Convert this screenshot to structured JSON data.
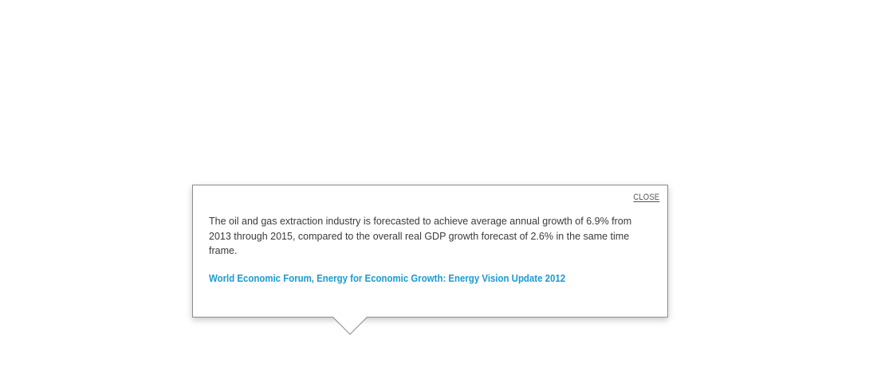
{
  "popover": {
    "close_label": "CLOSE",
    "body_text": "The oil and gas extraction industry is forecasted to achieve average annual growth of 6.9% from 2013 through 2015, compared to the overall real GDP growth forecast of 2.6% in the same time frame.",
    "source_link_text": "World Economic Forum, Energy for Economic Growth: Energy Vision Update 2012"
  },
  "colors": {
    "link": "#1a9bd0",
    "body_text": "#3a3a3a",
    "border": "#8c8c8c"
  }
}
